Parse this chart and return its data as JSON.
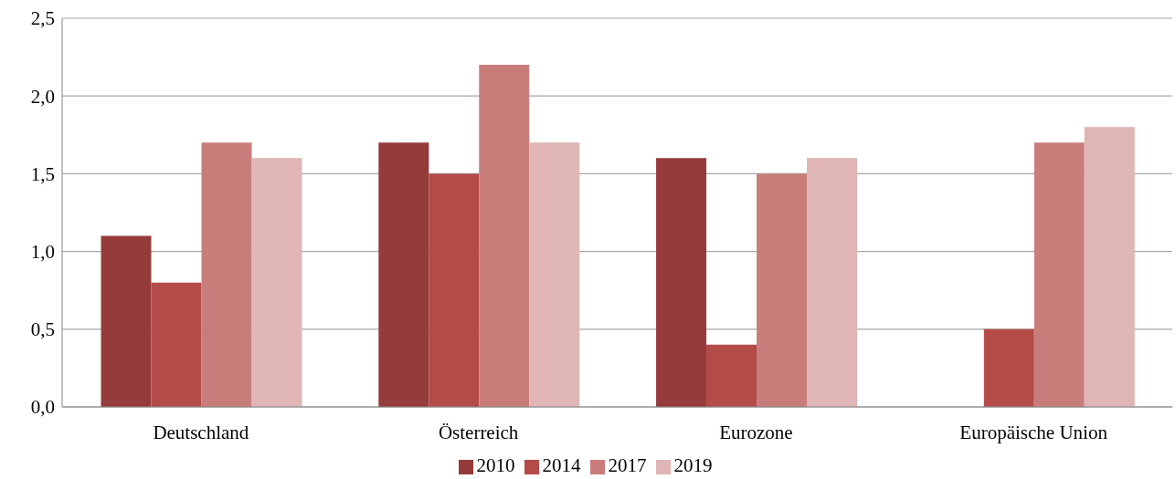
{
  "chart_data": {
    "type": "bar",
    "categories": [
      "Deutschland",
      "Österreich",
      "Eurozone",
      "Europäische Union"
    ],
    "series": [
      {
        "name": "2010",
        "color": "#953b3b",
        "values": [
          1.1,
          1.7,
          1.6,
          null
        ]
      },
      {
        "name": "2014",
        "color": "#b34b48",
        "values": [
          0.8,
          1.5,
          0.4,
          0.5
        ]
      },
      {
        "name": "2017",
        "color": "#c97d7b",
        "values": [
          1.7,
          2.2,
          1.5,
          1.7
        ]
      },
      {
        "name": "2019",
        "color": "#dfb5b5",
        "values": [
          1.6,
          1.7,
          1.6,
          1.8
        ]
      }
    ],
    "ylim": [
      0,
      2.5
    ],
    "yticks": [
      {
        "value": 0,
        "label": "0,0"
      },
      {
        "value": 0.5,
        "label": "0,5"
      },
      {
        "value": 1,
        "label": "1,0"
      },
      {
        "value": 1.5,
        "label": "1,5"
      },
      {
        "value": 2,
        "label": "2,0"
      },
      {
        "value": 2.5,
        "label": "2,5"
      }
    ],
    "grid": "y",
    "legend": "bottom"
  }
}
